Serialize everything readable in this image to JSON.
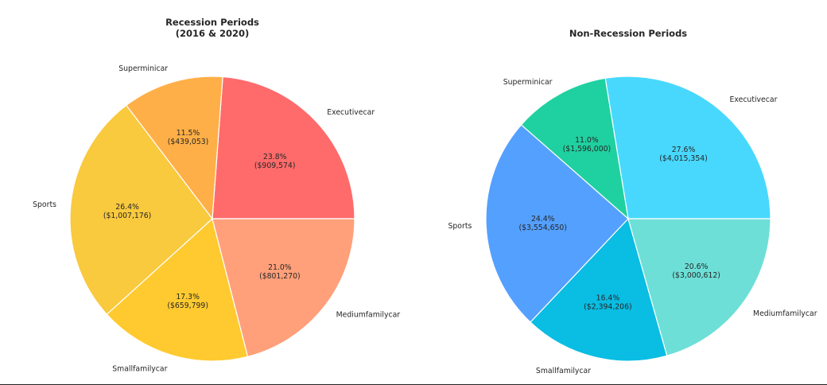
{
  "chart_data": [
    {
      "type": "pie",
      "title_line1": "Recession Periods",
      "title_line2": "(2016 & 2020)",
      "categories": [
        "Executivecar",
        "Superminicar",
        "Sports",
        "Smallfamilycar",
        "Mediumfamilycar"
      ],
      "percent_labels": [
        "23.8%",
        "11.5%",
        "26.4%",
        "17.3%",
        "21.0%"
      ],
      "value_labels": [
        "($909,574)",
        "($439,053)",
        "($1,007,176)",
        "($659,799)",
        "($801,270)"
      ],
      "values": [
        909574,
        439053,
        1007176,
        659799,
        801270
      ],
      "colors": [
        "#FF6B6B",
        "#FFAF47",
        "#F9C93E",
        "#FFCA30",
        "#FFA07A"
      ]
    },
    {
      "type": "pie",
      "title_line1": "Non-Recession Periods",
      "title_line2": "",
      "categories": [
        "Executivecar",
        "Superminicar",
        "Sports",
        "Smallfamilycar",
        "Mediumfamilycar"
      ],
      "percent_labels": [
        "27.6%",
        "11.0%",
        "24.4%",
        "16.4%",
        "20.6%"
      ],
      "value_labels": [
        "($4,015,354)",
        "($1,596,000)",
        "($3,554,650)",
        "($2,394,206)",
        "($3,000,612)"
      ],
      "values": [
        4015354,
        1596000,
        3554650,
        2394206,
        3000612
      ],
      "colors": [
        "#48D8FD",
        "#1FD1A0",
        "#54A0FF",
        "#0ABDE3",
        "#6DDFD7"
      ]
    }
  ]
}
